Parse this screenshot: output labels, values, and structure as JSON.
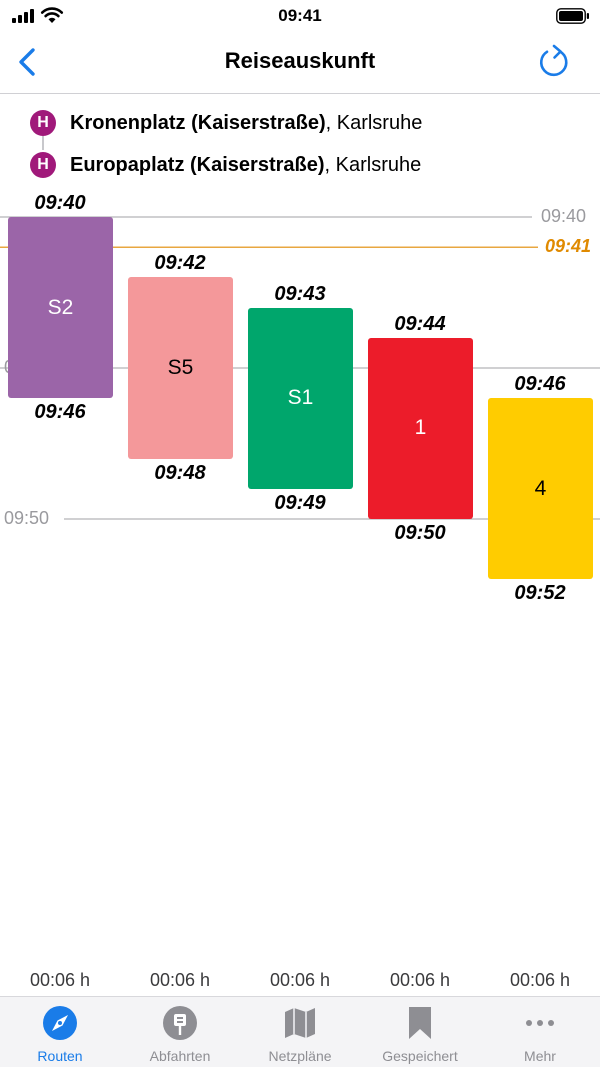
{
  "status_bar": {
    "time": "09:41"
  },
  "nav": {
    "title": "Reiseauskunft",
    "back_icon": "chevron-left-icon",
    "refresh_icon": "refresh-icon",
    "accent_color": "#1a7ce8"
  },
  "route": {
    "stop_icon_letter": "H",
    "stop_icon_color": "#a0197a",
    "from": {
      "name": "Kronenplatz (Kaiserstraße)",
      "city": ", Karlsruhe"
    },
    "to": {
      "name": "Europaplatz (Kaiserstraße)",
      "city": ", Karlsruhe"
    }
  },
  "timeline": {
    "time_labels": [
      "09:40",
      "09:50"
    ],
    "partial_label": "0",
    "current_time": "09:41",
    "current_time_color": "#e08a00",
    "legs": [
      {
        "line": "S2",
        "color": "#9b65a8",
        "text_color": "#ffffff",
        "dep": "09:40",
        "arr": "09:46",
        "duration": "00:06 h"
      },
      {
        "line": "S5",
        "color": "#f4989a",
        "text_color": "#000000",
        "dep": "09:42",
        "arr": "09:48",
        "duration": "00:06 h"
      },
      {
        "line": "S1",
        "color": "#00a66c",
        "text_color": "#ffffff",
        "dep": "09:43",
        "arr": "09:49",
        "duration": "00:06 h"
      },
      {
        "line": "1",
        "color": "#ec1c2a",
        "text_color": "#ffffff",
        "dep": "09:44",
        "arr": "09:50",
        "duration": "00:06 h"
      },
      {
        "line": "4",
        "color": "#ffcc00",
        "text_color": "#000000",
        "dep": "09:46",
        "arr": "09:52",
        "duration": "00:06 h"
      }
    ]
  },
  "tab_bar": {
    "tabs": [
      {
        "label": "Routen",
        "icon": "compass-icon",
        "active": true
      },
      {
        "label": "Abfahrten",
        "icon": "departures-sign-icon",
        "active": false
      },
      {
        "label": "Netzpläne",
        "icon": "map-icon",
        "active": false
      },
      {
        "label": "Gespeichert",
        "icon": "bookmark-icon",
        "active": false
      },
      {
        "label": "Mehr",
        "icon": "more-dots-icon",
        "active": false
      }
    ]
  }
}
